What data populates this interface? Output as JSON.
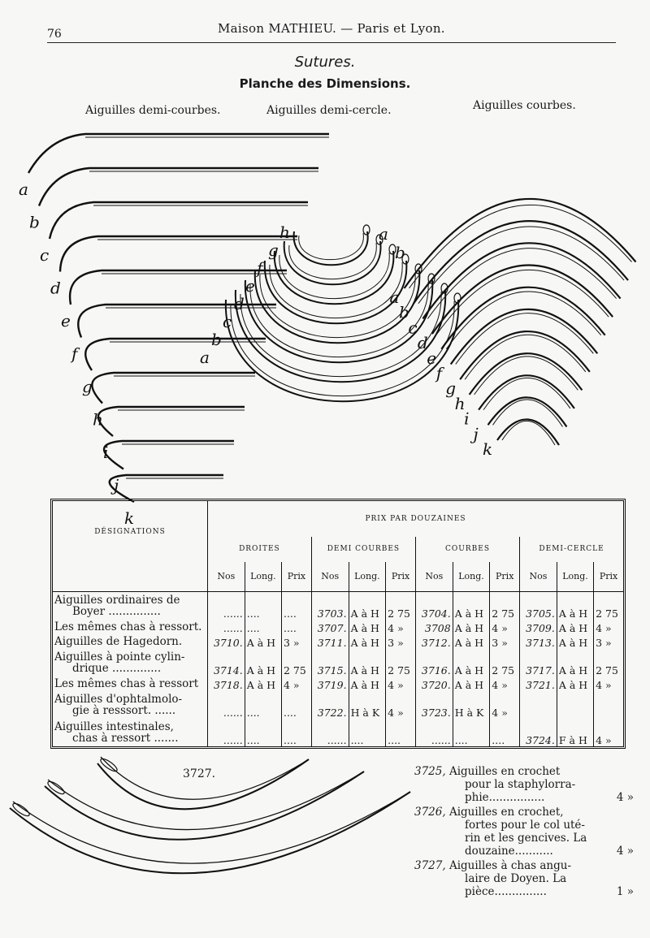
{
  "header": {
    "page_number": "76",
    "running_title": "Maison MATHIEU. — Paris et Lyon."
  },
  "title": "Sutures.",
  "subtitle": "Planche des Dimensions.",
  "figures": {
    "demi_courbes": {
      "label": "Aiguilles demi-courbes.",
      "letters": [
        "a",
        "b",
        "c",
        "d",
        "e",
        "f",
        "g",
        "h",
        "i",
        "j",
        "k"
      ]
    },
    "demi_cercle": {
      "label": "Aiguilles demi-cercle.",
      "letters": [
        "h",
        "g",
        "f",
        "e",
        "d",
        "c",
        "b",
        "a"
      ]
    },
    "courbes": {
      "label": "Aiguilles courbes.",
      "letters": [
        "a",
        "b",
        "c",
        "d",
        "e",
        "f",
        "g",
        "h",
        "i",
        "j",
        "k"
      ]
    }
  },
  "table": {
    "designations_header": "DÉSIGNATIONS",
    "price_header": "PRIX PAR DOUZAINES",
    "groups": [
      "DROITES",
      "DEMI COURBES",
      "COURBES",
      "DEMI-CERCLE"
    ],
    "subheaders": [
      "Nos",
      "Long.",
      "Prix"
    ],
    "rows": [
      {
        "label": [
          "Aiguilles ordinaires de",
          "Boyer ..............."
        ],
        "cells": [
          [
            "......",
            "....",
            "...."
          ],
          [
            "3703.",
            "A à H",
            "2 75"
          ],
          [
            "3704.",
            "A à H",
            "2 75"
          ],
          [
            "3705.",
            "A à H",
            "2 75"
          ]
        ]
      },
      {
        "label": [
          "Les mêmes chas à ressort."
        ],
        "cells": [
          [
            "......",
            "....",
            "...."
          ],
          [
            "3707.",
            "A à H",
            "4 »"
          ],
          [
            "3708",
            "A à H",
            "4 »"
          ],
          [
            "3709.",
            "A à H",
            "4 »"
          ]
        ]
      },
      {
        "label": [
          "Aiguilles de Hagedorn."
        ],
        "cells": [
          [
            "3710.",
            "A à H",
            "3 »"
          ],
          [
            "3711.",
            "A à H",
            "3 »"
          ],
          [
            "3712.",
            "A à H",
            "3 »"
          ],
          [
            "3713.",
            "A à H",
            "3 »"
          ]
        ]
      },
      {
        "label": [
          "Aiguilles à pointe cylin-",
          "drique .............."
        ],
        "cells": [
          [
            "3714.",
            "A à H",
            "2 75"
          ],
          [
            "3715.",
            "A à H",
            "2 75"
          ],
          [
            "3716.",
            "A à H",
            "2 75"
          ],
          [
            "3717.",
            "A à H",
            "2 75"
          ]
        ]
      },
      {
        "label": [
          "Les mêmes chas à ressort"
        ],
        "cells": [
          [
            "3718.",
            "A à H",
            "4 »"
          ],
          [
            "3719.",
            "A à H",
            "4 »"
          ],
          [
            "3720.",
            "A à H",
            "4 »"
          ],
          [
            "3721.",
            "A à H",
            "4 »"
          ]
        ]
      },
      {
        "label": [
          "Aiguilles d'ophtalmolo-",
          "gie à resssort. ......"
        ],
        "cells": [
          [
            "......",
            "....",
            "...."
          ],
          [
            "3722.",
            "H à K",
            "4 »"
          ],
          [
            "3723.",
            "H à K",
            "4 »"
          ],
          [
            "",
            "",
            ""
          ]
        ]
      },
      {
        "label": [
          "Aiguilles intestinales,",
          "chas à ressort ......."
        ],
        "cells": [
          [
            "......",
            "....",
            "...."
          ],
          [
            "......",
            "....",
            "...."
          ],
          [
            "......",
            "....",
            "...."
          ],
          [
            "3724.",
            "F à H",
            "4 »"
          ]
        ]
      }
    ]
  },
  "bottom_figure_label": "3727.",
  "entries": [
    {
      "number": "3725,",
      "lines": [
        "Aiguilles en crochet",
        "pour la staphylorra-",
        "phie................"
      ],
      "price": "4 »"
    },
    {
      "number": "3726,",
      "lines": [
        "Aiguilles en crochet,",
        "fortes pour le col uté-",
        "rin et les gencives. La",
        "douzaine..........."
      ],
      "price": "4 »"
    },
    {
      "number": "3727,",
      "lines": [
        "Aiguilles à chas angu-",
        "laire de Doyen. La",
        "pièce..............."
      ],
      "price": "1 »"
    }
  ]
}
